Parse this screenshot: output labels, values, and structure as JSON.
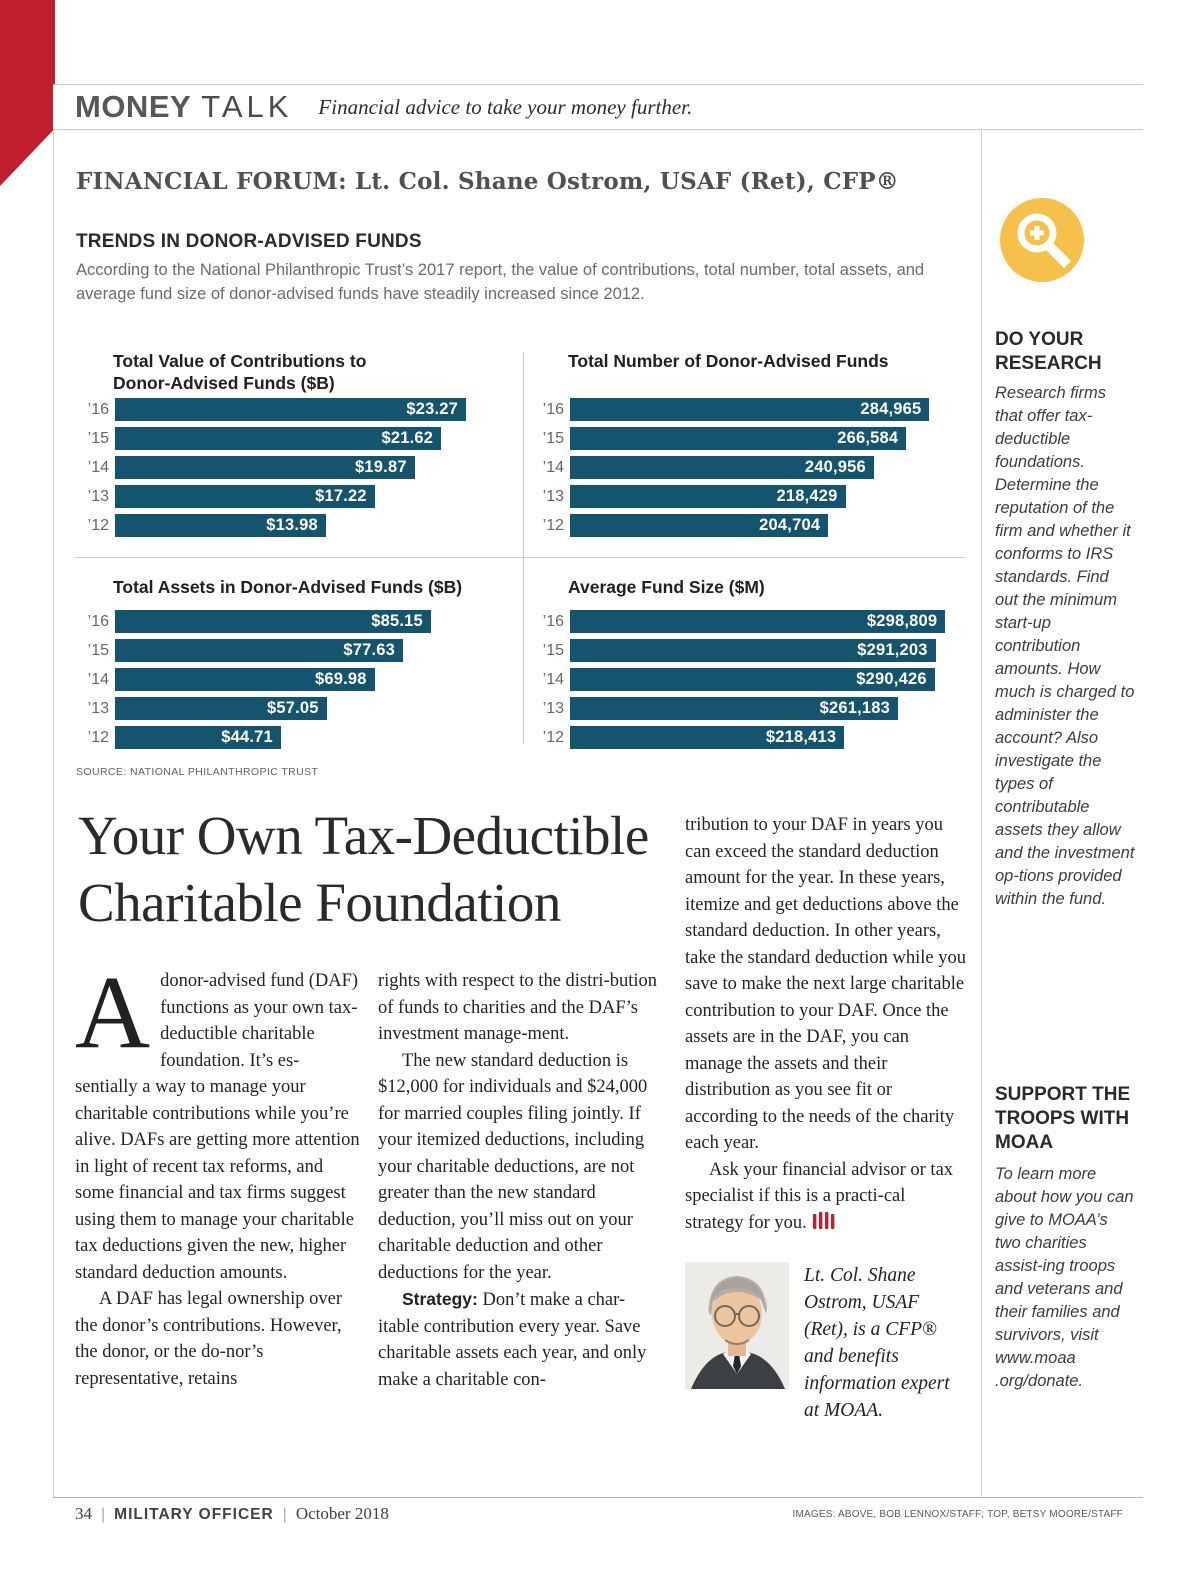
{
  "colors": {
    "accent_red": "#C01F2D",
    "bar_teal": "#15546E",
    "icon_yellow": "#F5C14B"
  },
  "masthead": {
    "brand_bold": "MONEY",
    "brand_thin": "TALK",
    "tagline": "Financial advice to take your money further."
  },
  "forum_label": "FINANCIAL FORUM:",
  "forum_author": "Lt. Col. Shane Ostrom, USAF (Ret), CFP®",
  "trends_title": "TRENDS IN DONOR-ADVISED FUNDS",
  "trends_intro": "According to the National Philanthropic Trust’s 2017 report, the value of contributions, total number, total assets, and average fund size of donor-advised funds have steadily increased since 2012.",
  "source_note": "SOURCE: NATIONAL PHILANTHROPIC TRUST",
  "chart_data": [
    {
      "type": "bar",
      "orientation": "horizontal",
      "title": "Total Value of Contributions to Donor-Advised Funds ($B)",
      "categories": [
        "’16",
        "’15",
        "’14",
        "’13",
        "’12"
      ],
      "values": [
        23.27,
        21.62,
        19.87,
        17.22,
        13.98
      ],
      "labels": [
        "$23.27",
        "$21.62",
        "$19.87",
        "$17.22",
        "$13.98"
      ],
      "xlim": [
        0,
        23.27
      ],
      "bar_color": "#15546E",
      "max_bar_pct": 90,
      "grid": false,
      "legend": "none"
    },
    {
      "type": "bar",
      "orientation": "horizontal",
      "title": "Total Number of Donor-Advised Funds",
      "categories": [
        "’16",
        "’15",
        "’14",
        "’13",
        "’12"
      ],
      "values": [
        284965,
        266584,
        240956,
        218429,
        204704
      ],
      "labels": [
        "284,965",
        "266,584",
        "240,956",
        "218,429",
        "204,704"
      ],
      "xlim": [
        0,
        284965
      ],
      "bar_color": "#15546E",
      "max_bar_pct": 91,
      "grid": false,
      "legend": "none"
    },
    {
      "type": "bar",
      "orientation": "horizontal",
      "title": "Total Assets in Donor-Advised Funds ($B)",
      "categories": [
        "’16",
        "’15",
        "’14",
        "’13",
        "’12"
      ],
      "values": [
        85.15,
        77.63,
        69.98,
        57.05,
        44.71
      ],
      "labels": [
        "$85.15",
        "$77.63",
        "$69.98",
        "$57.05",
        "$44.71"
      ],
      "xlim": [
        0,
        85.15
      ],
      "bar_color": "#15546E",
      "max_bar_pct": 81,
      "grid": false,
      "legend": "none"
    },
    {
      "type": "bar",
      "orientation": "horizontal",
      "title": "Average Fund Size ($M)",
      "categories": [
        "’16",
        "’15",
        "’14",
        "’13",
        "’12"
      ],
      "values": [
        298809,
        291203,
        290426,
        261183,
        218413
      ],
      "labels": [
        "$298,809",
        "$291,203",
        "$290,426",
        "$261,183",
        "$218,413"
      ],
      "xlim": [
        0,
        298809
      ],
      "bar_color": "#15546E",
      "max_bar_pct": 95,
      "grid": false,
      "legend": "none"
    }
  ],
  "article": {
    "title_line1": "Your Own Tax-Deductible",
    "title_line2": "Charitable Foundation",
    "dropcap": "A",
    "col1_p1": "donor-advised fund (DAF) functions as your own tax-deductible charitable foundation. It’s es-sentially a way to manage your charitable contributions while you’re alive. DAFs are getting more attention in light of recent tax reforms, and some financial and tax firms suggest using them to manage your charitable tax deductions given the new, higher standard deduction amounts.",
    "col1_p2": "A DAF has legal ownership over the donor’s contributions. However, the donor, or the do-nor’s representative, retains",
    "col2_p1": "rights with respect to the distri-bution of funds to charities and the DAF’s investment manage-ment.",
    "col2_p2": "The new standard deduction is $12,000 for individuals and $24,000 for married couples filing jointly. If your itemized deductions, including your charitable deductions, are not greater than the new standard deduction, you’ll miss out on your charitable deduction and other deductions for the year.",
    "col2_p3_lead": "Strategy:",
    "col2_p3_rest": " Don’t make a char-itable contribution every year. Save charitable assets each year, and only make a charitable con-",
    "col3_p1": "tribution to your DAF in years you can exceed the standard deduction amount for the year. In these years, itemize and get deductions above the standard deduction. In other years, take the standard deduction while you save to make the next large charitable contribution to your DAF. Once the assets are in the DAF, you can manage the assets and their distribution as you see fit or according to the needs of the charity each year.",
    "col3_p2": "Ask your financial advisor or tax specialist if this is a practi-cal strategy for you.",
    "bio": "Lt. Col. Shane Ostrom, USAF (Ret), is a CFP® and benefits information expert at MOAA."
  },
  "sidebar": {
    "research_heading": "DO YOUR RESEARCH",
    "research_body": "Research firms that offer tax-deductible foundations. Determine the reputation of the firm and whether it conforms to IRS standards. Find out the minimum start-up contribution amounts. How much is charged to administer the account? Also investigate the types of contributable assets they allow and the investment op-tions provided within the fund.",
    "support_heading": "SUPPORT THE TROOPS WITH MOAA",
    "support_body": "To learn more about how you can give to MOAA’s two charities assist-ing troops and veterans and their families and survivors, visit www.moaa .org/donate."
  },
  "footer": {
    "page_number": "34",
    "magazine": "MILITARY OFFICER",
    "issue": "October 2018",
    "credits": "IMAGES: ABOVE, BOB LENNOX/STAFF; TOP, BETSY MOORE/STAFF"
  }
}
